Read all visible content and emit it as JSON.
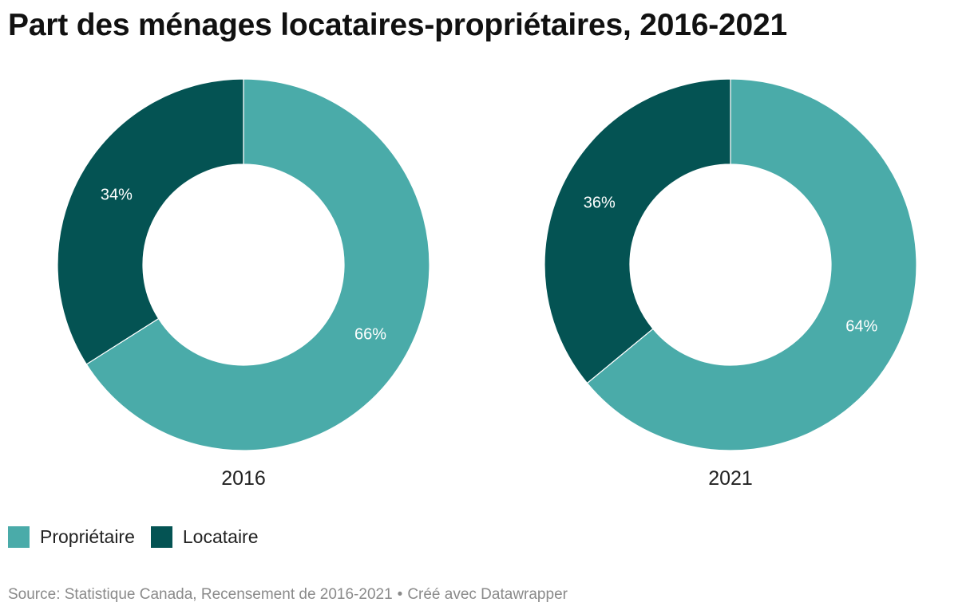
{
  "title": "Part des ménages locataires-propriétaires, 2016-2021",
  "colors": {
    "proprietaire": "#4aaba9",
    "locataire": "#045353"
  },
  "legend": [
    {
      "label": "Propriétaire",
      "color": "#4aaba9"
    },
    {
      "label": "Locataire",
      "color": "#045353"
    }
  ],
  "source": {
    "text": "Source: Statistique Canada, Recensement de 2016-2021",
    "separator": "•",
    "credit": "Créé avec Datawrapper"
  },
  "chart_data": [
    {
      "type": "pie",
      "variant": "donut",
      "title": "2016",
      "categories": [
        "Propriétaire",
        "Locataire"
      ],
      "values": [
        66,
        34
      ],
      "labels": [
        "66%",
        "34%"
      ]
    },
    {
      "type": "pie",
      "variant": "donut",
      "title": "2021",
      "categories": [
        "Propriétaire",
        "Locataire"
      ],
      "values": [
        64,
        36
      ],
      "labels": [
        "64%",
        "36%"
      ]
    }
  ]
}
